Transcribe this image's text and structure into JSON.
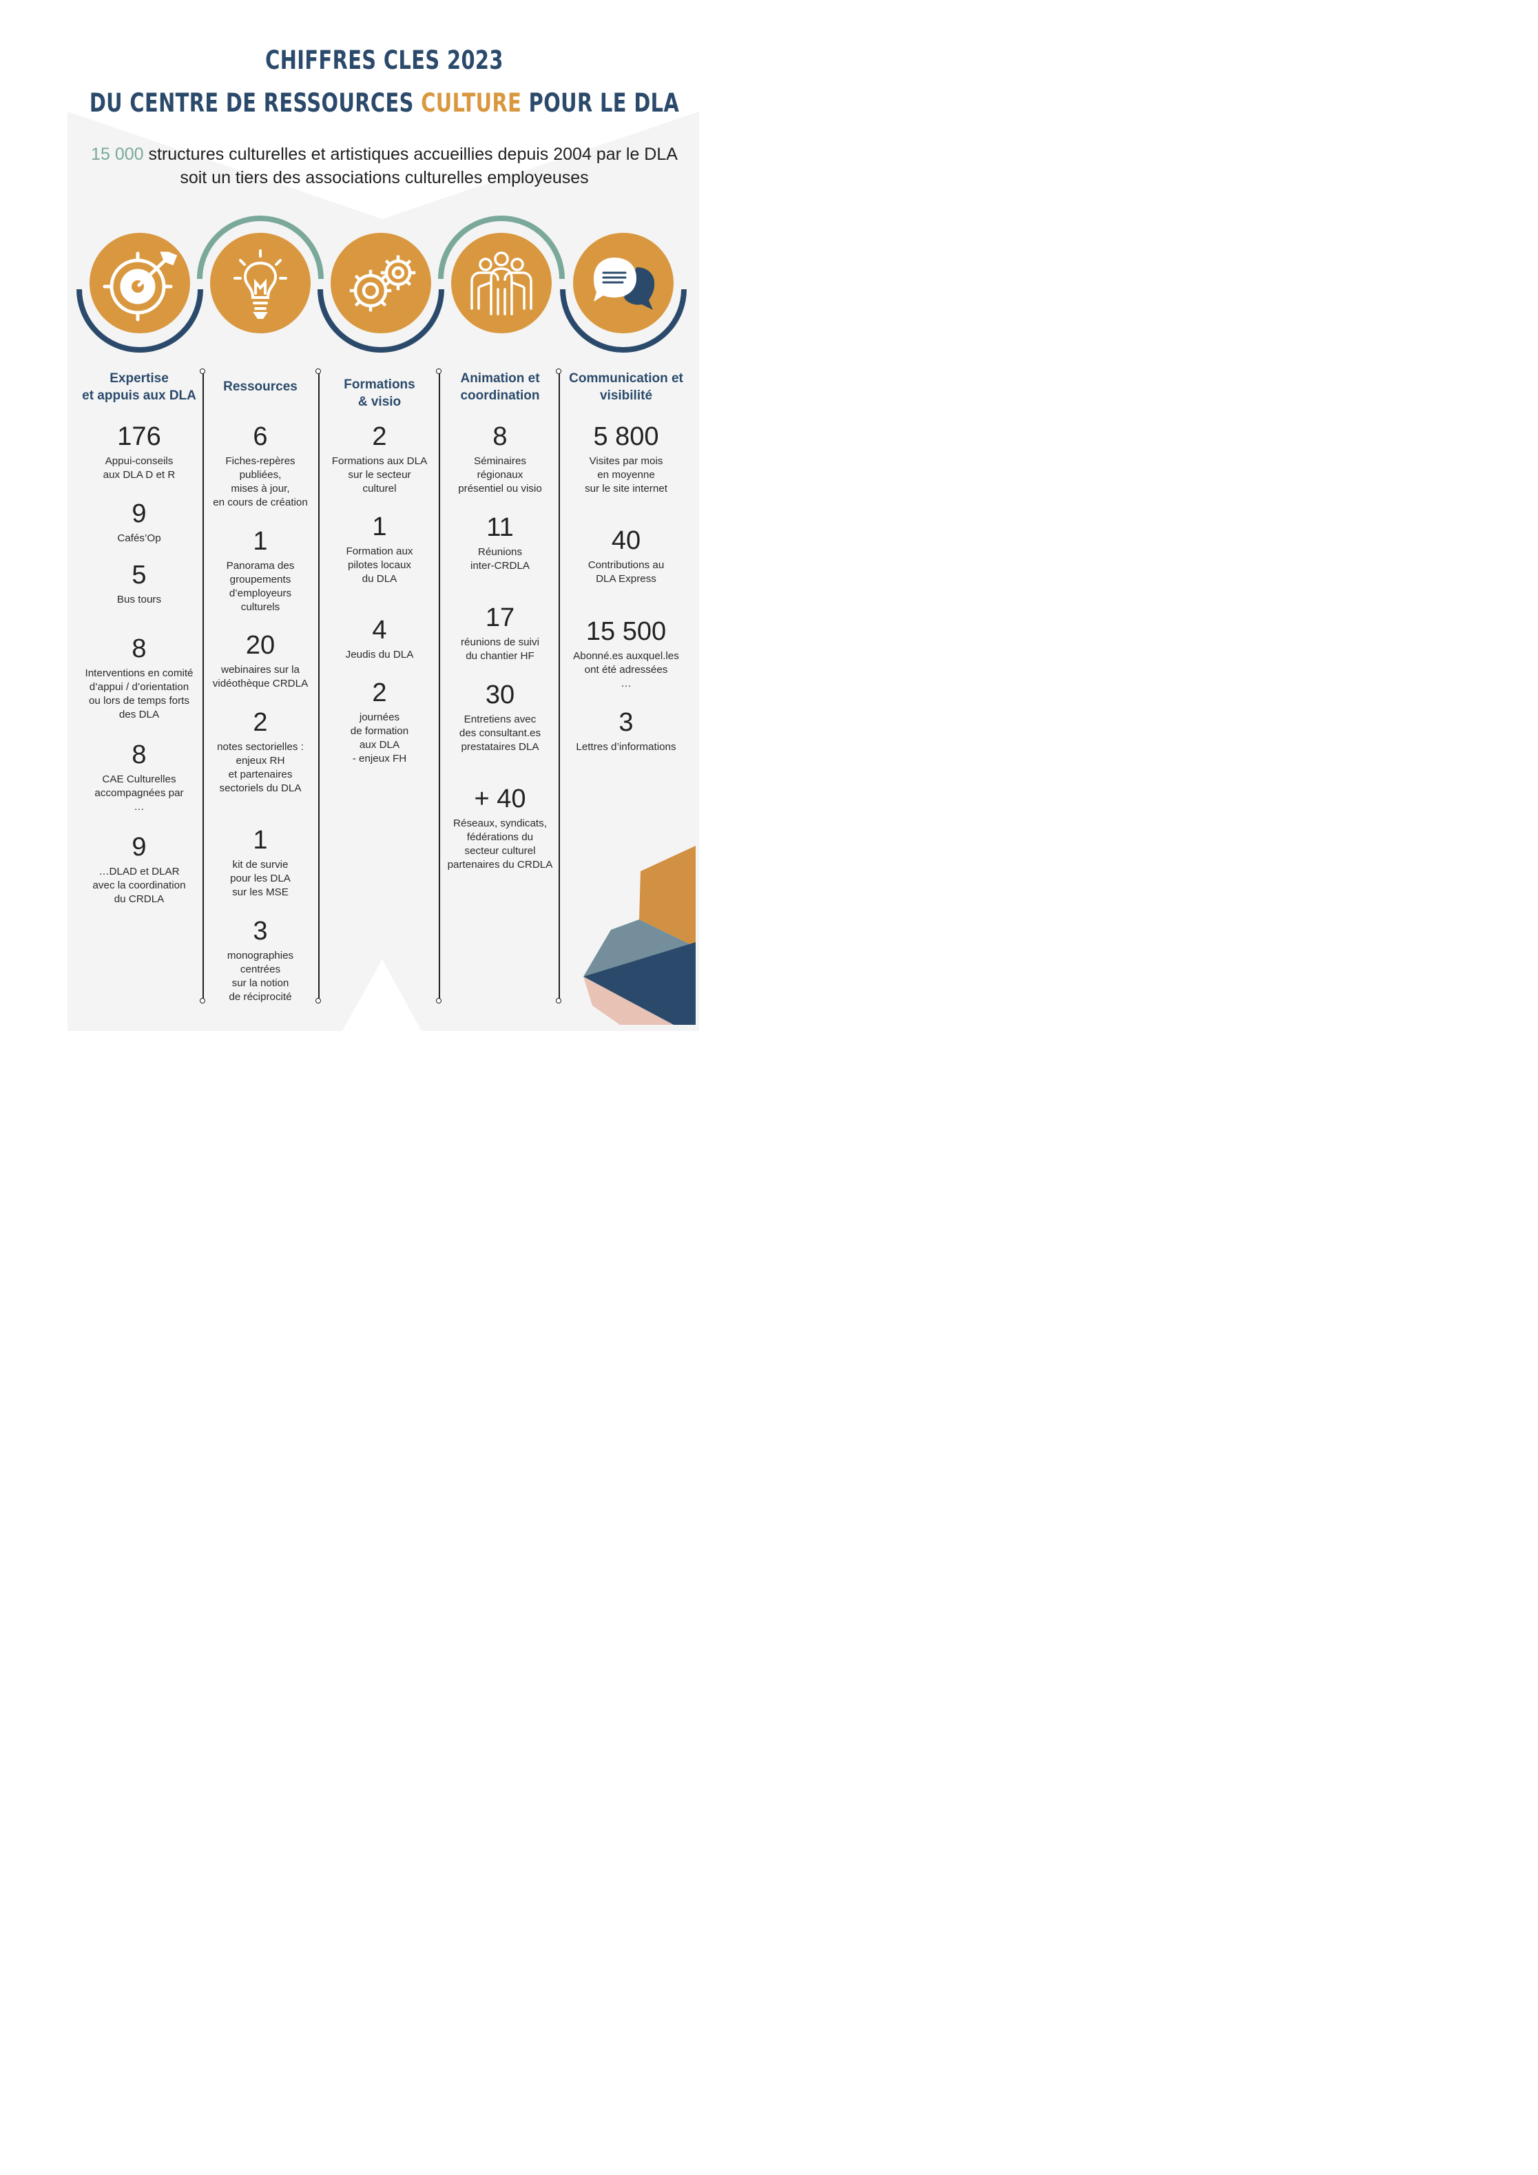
{
  "header": {
    "title_line1": "CHIFFRES CLES 2023",
    "title_line2_a": "DU CENTRE DE RESSOURCES ",
    "title_line2_highlight": "CULTURE",
    "title_line2_b": " POUR LE DLA"
  },
  "intro": {
    "number": "15 000",
    "line1_rest": " structures culturelles et artistiques accueillies depuis 2004 par le DLA",
    "line2": "soit un tiers des associations culturelles employeuses"
  },
  "icons": [
    "target-icon",
    "lightbulb-icon",
    "gears-icon",
    "people-icon",
    "chat-bubbles-icon"
  ],
  "colors": {
    "navy": "#2b4a6b",
    "orange": "#d9983f",
    "teal": "#7aa89a",
    "panel": "#f4f4f4",
    "pink": "#e8c3b5",
    "slate": "#748f9b"
  },
  "columns": [
    {
      "title": "Expertise\net appuis aux DLA",
      "stats": [
        {
          "num": "176",
          "label": "Appui-conseils\naux DLA D et R"
        },
        {
          "num": "9",
          "label": "Cafés’Op"
        },
        {
          "num": "5",
          "label": "Bus tours"
        },
        {
          "num": "8",
          "label": "Interventions en comité\nd’appui / d’orientation\nou lors de temps forts\ndes DLA"
        },
        {
          "num": "8",
          "label": "CAE Culturelles\naccompagnées par\n…"
        },
        {
          "num": "9",
          "label": "…DLAD et DLAR\navec la coordination\ndu CRDLA"
        }
      ]
    },
    {
      "title": "Ressources",
      "stats": [
        {
          "num": "6",
          "label": "Fiches-repères\npubliées,\nmises à jour,\nen cours de création"
        },
        {
          "num": "1",
          "label": "Panorama des\ngroupements\nd’employeurs\nculturels"
        },
        {
          "num": "20",
          "label": "webinaires sur la\nvidéothèque CRDLA"
        },
        {
          "num": "2",
          "label": "notes sectorielles :\nenjeux RH\net partenaires\nsectoriels du DLA"
        },
        {
          "num": "1",
          "label": "kit de survie\npour les DLA\nsur les MSE"
        },
        {
          "num": "3",
          "label": "monographies\ncentrées\nsur la notion\nde réciprocité"
        }
      ]
    },
    {
      "title": "Formations\n& visio",
      "stats": [
        {
          "num": "2",
          "label": "Formations aux DLA\nsur le secteur\nculturel"
        },
        {
          "num": "1",
          "label": "Formation aux\npilotes locaux\ndu DLA"
        },
        {
          "num": "4",
          "label": "Jeudis du DLA"
        },
        {
          "num": "2",
          "label": "journées\nde formation\naux DLA\n- enjeux FH"
        }
      ]
    },
    {
      "title": "Animation et\ncoordination",
      "stats": [
        {
          "num": "8",
          "label": "Séminaires\nrégionaux\nprésentiel ou visio"
        },
        {
          "num": "11",
          "label": "Réunions\ninter-CRDLA"
        },
        {
          "num": "17",
          "label": "réunions de suivi\ndu chantier HF"
        },
        {
          "num": "30",
          "label": "Entretiens avec\ndes consultant.es\nprestataires DLA"
        },
        {
          "num": "+ 40",
          "label": "Réseaux, syndicats,\nfédérations du\nsecteur culturel\npartenaires du CRDLA"
        }
      ]
    },
    {
      "title": "Communication et\nvisibilité",
      "stats": [
        {
          "num": "5 800",
          "label": "Visites par mois\nen moyenne\nsur le site internet"
        },
        {
          "num": "40",
          "label": "Contributions au\nDLA Express"
        },
        {
          "num": "15 500",
          "label": "Abonné.es auxquel.les\nont été adressées\n…"
        },
        {
          "num": "3",
          "label": "Lettres d’informations"
        }
      ]
    }
  ]
}
